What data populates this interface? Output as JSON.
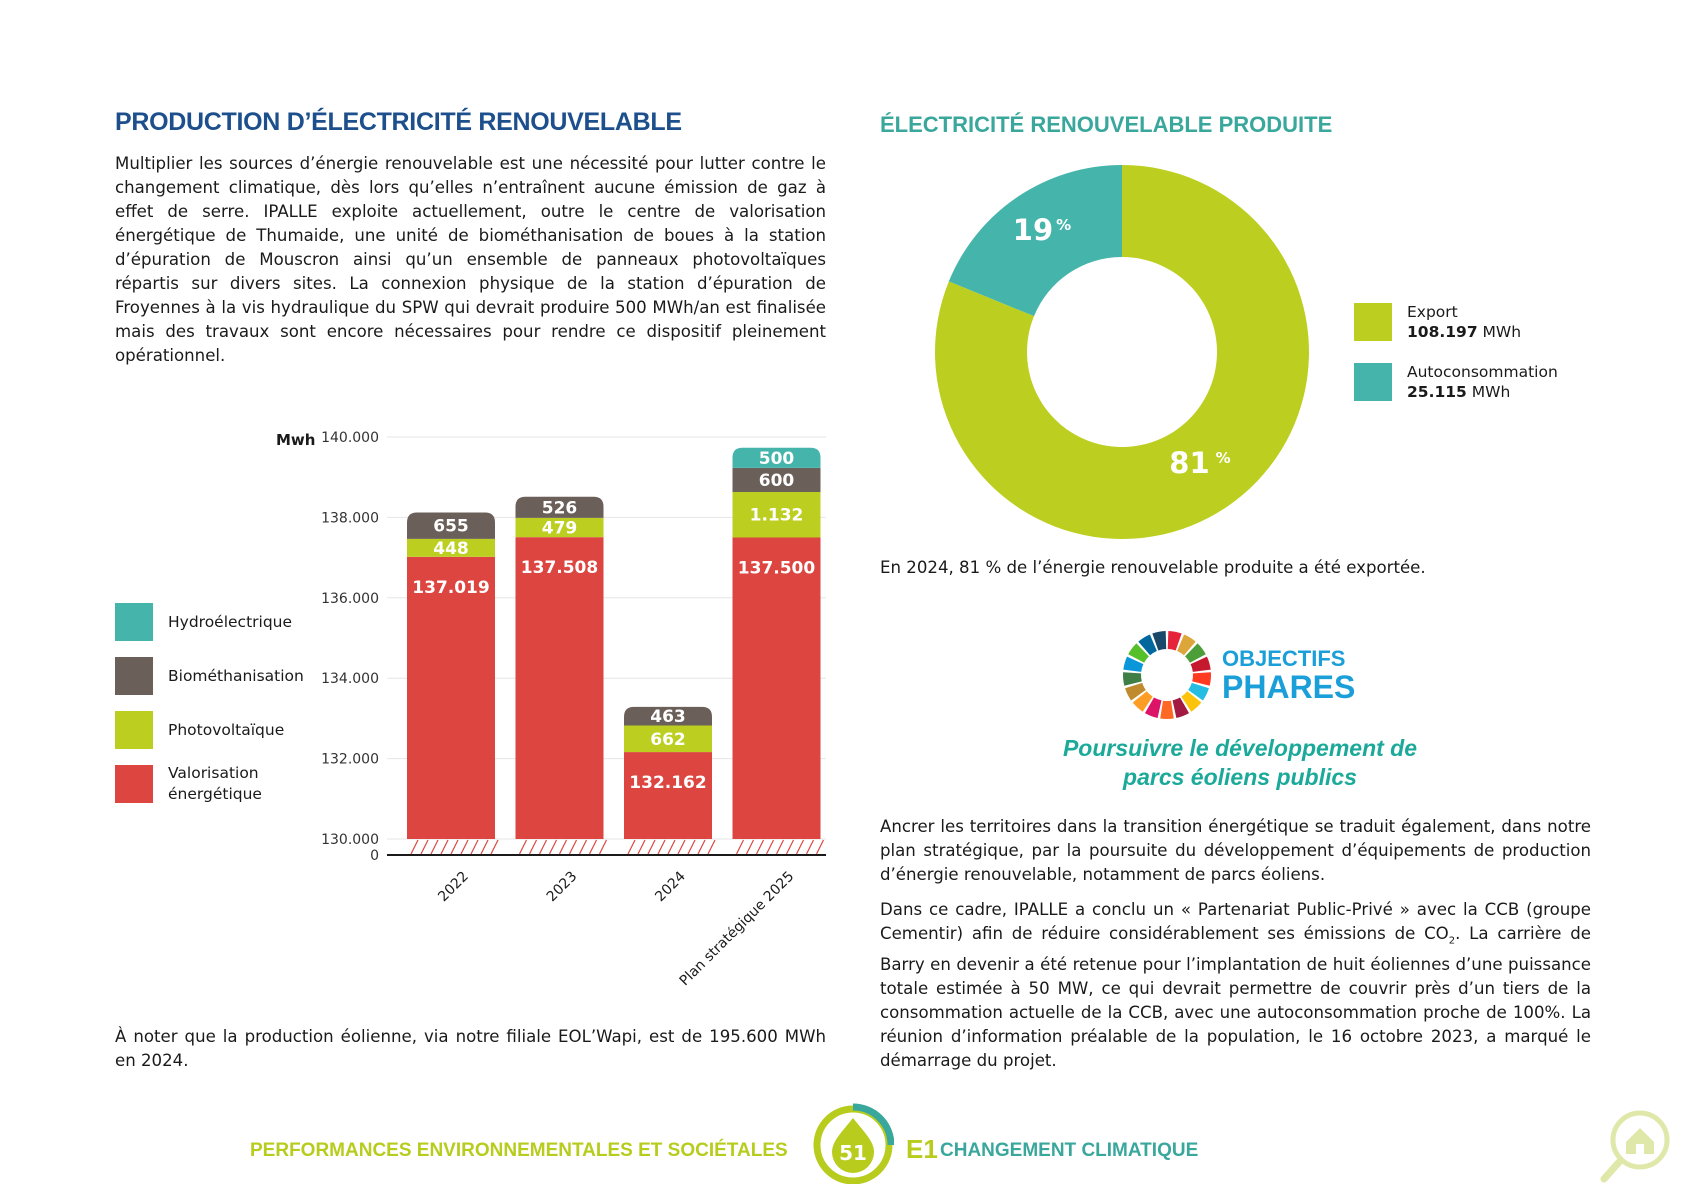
{
  "left": {
    "heading": "PRODUCTION D’ÉLECTRICITÉ RENOUVELABLE",
    "intro": "Multiplier les sources d’énergie renouvelable est une nécessité pour lutter contre le changement climatique, dès lors qu’elles n’entraînent aucune émission de gaz à effet de serre. IPALLE exploite actuellement, outre le centre de valorisation énergétique de Thumaide, une unité de biométhanisation de boues à la station d’épuration de Mouscron ainsi qu’un ensemble de panneaux photovoltaïques répartis sur divers sites. La connexion physique de la station d’épuration de Froyennes à la vis hydraulique du SPW qui devrait produire 500 MWh/an est finalisée mais des travaux sont encore nécessaires pour rendre ce dispositif pleinement opérationnel.",
    "note": "À noter que la production éolienne, via notre filiale EOL’Wapi, est de 195.600 MWh en 2024."
  },
  "legend": [
    {
      "label": "Hydroélectrique",
      "color": "#45b5ab"
    },
    {
      "label": "Biométhanisation",
      "color": "#6b5f5a"
    },
    {
      "label": "Photovoltaïque",
      "color": "#bccf20"
    },
    {
      "label": "Valorisation énergétique",
      "color": "#dc4540"
    }
  ],
  "chart_data": [
    {
      "type": "bar",
      "stacked": true,
      "ylabel": "Mwh",
      "ylim": [
        130000,
        140000
      ],
      "axis_break": true,
      "yticks": [
        "140.000",
        "138.000",
        "136.000",
        "134.000",
        "132.000",
        "130.000",
        "0"
      ],
      "categories": [
        "2022",
        "2023",
        "2024",
        "Plan stratégique 2025"
      ],
      "series": [
        {
          "name": "Valorisation énergétique",
          "color": "#dc4540",
          "values": [
            137019,
            137508,
            132162,
            137500
          ],
          "labels": [
            "137.019",
            "137.508",
            "132.162",
            "137.500"
          ]
        },
        {
          "name": "Photovoltaïque",
          "color": "#bccf20",
          "values": [
            448,
            479,
            662,
            1132
          ],
          "labels": [
            "448",
            "479",
            "662",
            "1.132"
          ]
        },
        {
          "name": "Biométhanisation",
          "color": "#6b5f5a",
          "values": [
            655,
            526,
            463,
            600
          ],
          "labels": [
            "655",
            "526",
            "463",
            "600"
          ]
        },
        {
          "name": "Hydroélectrique",
          "color": "#45b5ab",
          "values": [
            0,
            0,
            0,
            500
          ],
          "labels": [
            "",
            "",
            "",
            "500"
          ]
        }
      ]
    },
    {
      "type": "pie",
      "donut": true,
      "title": "ÉLECTRICITÉ RENOUVELABLE PRODUITE",
      "slices": [
        {
          "name": "Export",
          "value": 108197,
          "percent": 81,
          "label": "81",
          "unit": "108.197",
          "color": "#bccf20"
        },
        {
          "name": "Autoconsommation",
          "value": 25115,
          "percent": 19,
          "label": "19",
          "unit": "25.115",
          "color": "#45b5ab"
        }
      ]
    }
  ],
  "right": {
    "heading": "ÉLECTRICITÉ RENOUVELABLE PRODUITE",
    "pie_caption": "En 2024, 81 % de l’énergie renouvelable produite a été exportée.",
    "mwh": "MWh",
    "pct_sign": "%",
    "sdg_line1": "OBJECTIFS",
    "sdg_line2": "PHARES",
    "goal_line1": "Poursuivre le développement de",
    "goal_line2": "parcs éoliens publics",
    "para1": "Ancrer les territoires dans la transition énergétique se traduit également, dans notre plan stratégique, par la poursuite du développement d’équipements de production d’énergie renouvelable, notamment de parcs éoliens.",
    "para2_a": "Dans ce cadre, IPALLE a conclu un « Partenariat Public-Privé » avec la CCB (groupe Cementir) afin de réduire considérablement ses émissions de CO",
    "para2_sub": "2",
    "para2_b": ". La carrière de Barry en devenir a été retenue pour l’implantation de huit éoliennes d’une puissance totale estimée à 50 MW, ce qui devrait permettre de couvrir près d’un tiers de la consommation actuelle de la CCB, avec une autoconsommation proche de 100%. La réunion d’information préalable de la population, le 16 octobre 2023, a marqué le démarrage du projet."
  },
  "footer": {
    "left": "PERFORMANCES ENVIRONNEMENTALES ET SOCIÉTALES",
    "page": "51",
    "section_code": "E1",
    "right": "CHANGEMENT CLIMATIQUE"
  }
}
